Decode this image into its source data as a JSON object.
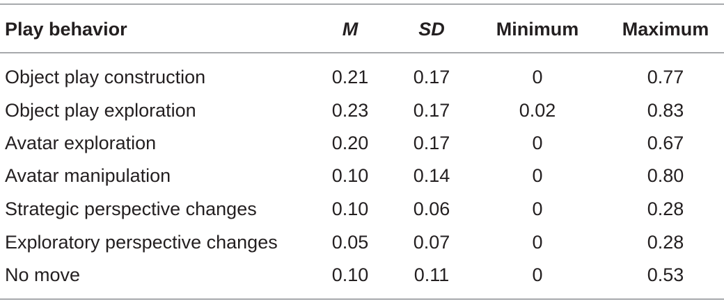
{
  "table": {
    "headers": {
      "play_behavior": "Play behavior",
      "m": "M",
      "sd": "SD",
      "minimum": "Minimum",
      "maximum": "Maximum"
    },
    "rows": [
      {
        "label": "Object play construction",
        "m": "0.21",
        "sd": "0.17",
        "min": "0",
        "max": "0.77"
      },
      {
        "label": "Object play exploration",
        "m": "0.23",
        "sd": "0.17",
        "min": "0.02",
        "max": "0.83"
      },
      {
        "label": "Avatar exploration",
        "m": "0.20",
        "sd": "0.17",
        "min": "0",
        "max": "0.67"
      },
      {
        "label": "Avatar manipulation",
        "m": "0.10",
        "sd": "0.14",
        "min": "0",
        "max": "0.80"
      },
      {
        "label": "Strategic perspective changes",
        "m": "0.10",
        "sd": "0.06",
        "min": "0",
        "max": "0.28"
      },
      {
        "label": "Exploratory perspective changes",
        "m": "0.05",
        "sd": "0.07",
        "min": "0",
        "max": "0.28"
      },
      {
        "label": "No move",
        "m": "0.10",
        "sd": "0.11",
        "min": "0",
        "max": "0.53"
      }
    ]
  }
}
